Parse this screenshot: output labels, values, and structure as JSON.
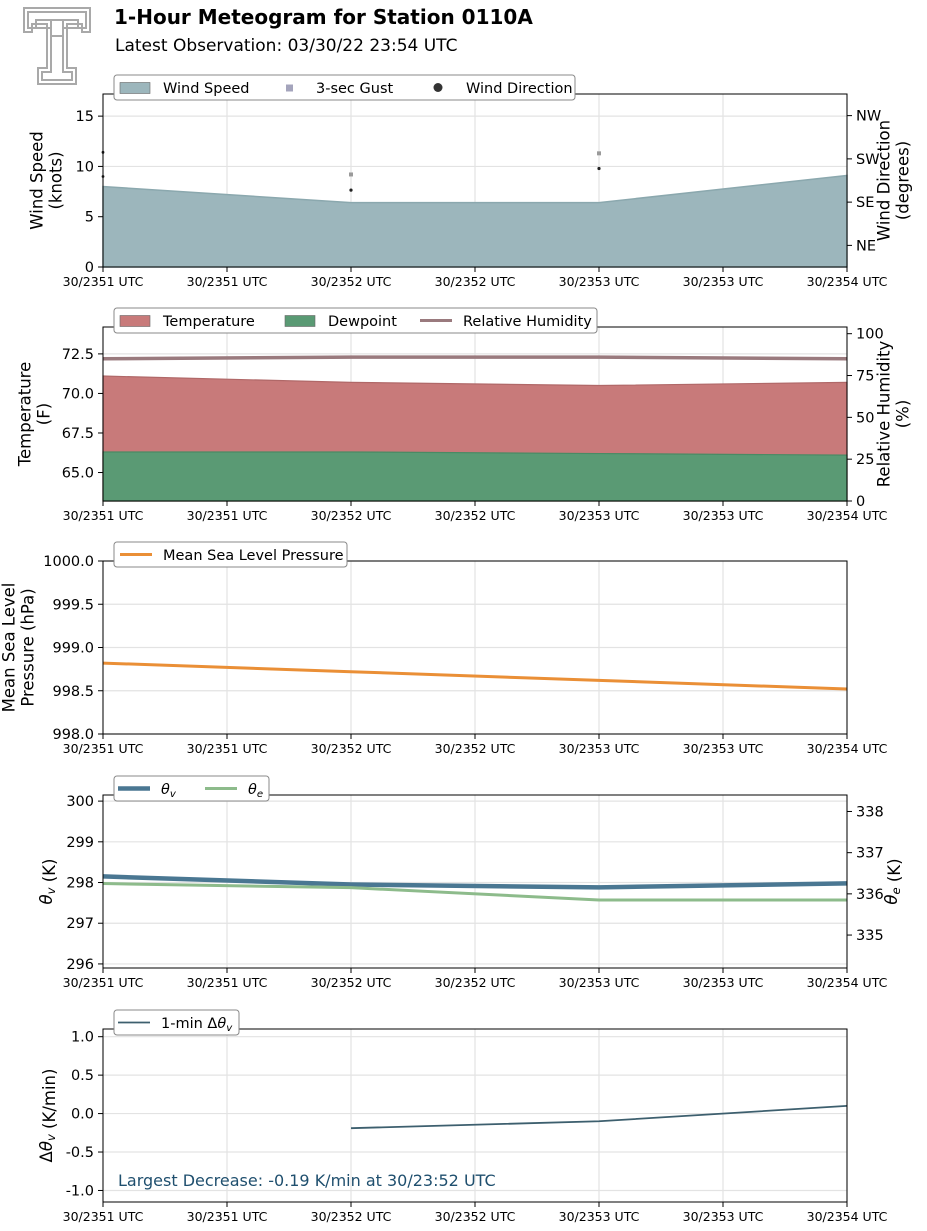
{
  "header": {
    "title": "1-Hour Meteogram for Station 0110A",
    "subtitle": "Latest Observation: 03/30/22 23:54 UTC"
  },
  "colors": {
    "wind_speed": "#9cb6bc",
    "gust": "#a4a4bc",
    "direction": "#222222",
    "temperature": "#c87a7a",
    "dewpoint": "#5a9a74",
    "rh": "#9a7a7e",
    "pressure": "#ea8f36",
    "theta_v": "#4a7792",
    "theta_e": "#8dbb8b",
    "dtheta": "#3d5f6e",
    "annotation": "#1f4f6e",
    "logo": "#a9a9a9"
  },
  "x_tick_labels": [
    "30/2351 UTC",
    "30/2351 UTC",
    "30/2352 UTC",
    "30/2352 UTC",
    "30/2353 UTC",
    "30/2353 UTC",
    "30/2354 UTC"
  ],
  "chart_data": [
    {
      "id": "wind",
      "type": "area",
      "ylabel": "Wind Speed\n(knots)",
      "y2label": "Wind Direction\n(degrees)",
      "ylim": [
        0,
        17.2
      ],
      "yticks": [
        0,
        5,
        10,
        15
      ],
      "y2lim": [
        0,
        360
      ],
      "y2ticks": [
        45,
        135,
        225,
        315
      ],
      "y2ticklabels": [
        "NE",
        "SE",
        "SW",
        "NW"
      ],
      "x": [
        0,
        1,
        2,
        3
      ],
      "legend": [
        "Wind Speed",
        "3-sec Gust",
        "Wind Direction"
      ],
      "series": [
        {
          "name": "Wind Speed",
          "values": [
            8.0,
            6.4,
            6.4,
            9.1
          ]
        },
        {
          "name": "3-sec Gust",
          "values": [
            null,
            9.2,
            11.3,
            null
          ]
        },
        {
          "name": "Wind Direction",
          "values": [
            null,
            160,
            205,
            null
          ]
        }
      ]
    },
    {
      "id": "temp",
      "type": "area",
      "ylabel": "Temperature\n(F)",
      "y2label": "Relative Humidity\n(%)",
      "ylim": [
        63.2,
        74.2
      ],
      "yticks": [
        65.0,
        67.5,
        70.0,
        72.5
      ],
      "y2lim": [
        0,
        104
      ],
      "y2ticks": [
        0,
        25,
        50,
        75,
        100
      ],
      "x": [
        0,
        1,
        2,
        3
      ],
      "legend": [
        "Temperature",
        "Dewpoint",
        "Relative Humidity"
      ],
      "series": [
        {
          "name": "Temperature",
          "values": [
            71.1,
            70.7,
            70.5,
            70.7
          ]
        },
        {
          "name": "Dewpoint",
          "values": [
            66.3,
            66.3,
            66.2,
            66.1
          ]
        },
        {
          "name": "Relative Humidity",
          "values": [
            85,
            86,
            86,
            85
          ]
        }
      ]
    },
    {
      "id": "pressure",
      "type": "line",
      "ylabel": "Mean Sea Level\nPressure (hPa)",
      "ylim": [
        998.0,
        1000.0
      ],
      "yticks": [
        998.0,
        998.5,
        999.0,
        999.5,
        1000.0
      ],
      "x": [
        0,
        1,
        2,
        3
      ],
      "legend": [
        "Mean Sea Level Pressure"
      ],
      "series": [
        {
          "name": "Mean Sea Level Pressure",
          "values": [
            998.82,
            998.72,
            998.62,
            998.52
          ]
        }
      ]
    },
    {
      "id": "theta",
      "type": "line",
      "ylabel": "θv (K)",
      "y2label": "θe (K)",
      "ylim": [
        295.9,
        300.15
      ],
      "yticks": [
        296,
        297,
        298,
        299,
        300
      ],
      "y2lim": [
        334.2,
        338.4
      ],
      "y2ticks": [
        335,
        336,
        337,
        338
      ],
      "x": [
        0,
        1,
        2,
        3
      ],
      "legend": [
        "θv",
        "θe"
      ],
      "series": [
        {
          "name": "θv",
          "values": [
            298.15,
            297.95,
            297.88,
            297.98
          ]
        },
        {
          "name": "θe",
          "values": [
            336.25,
            336.15,
            335.85,
            335.85
          ]
        }
      ]
    },
    {
      "id": "dtheta",
      "type": "line",
      "ylabel": "Δθv (K/min)",
      "ylim": [
        -1.15,
        1.1
      ],
      "yticks": [
        -1.0,
        -0.5,
        0.0,
        0.5,
        1.0
      ],
      "x": [
        0,
        1,
        2,
        3
      ],
      "legend": [
        "1-min Δθv"
      ],
      "series": [
        {
          "name": "1-min Δθv",
          "values": [
            null,
            -0.19,
            -0.1,
            0.1
          ]
        }
      ],
      "annotation": "Largest Decrease: -0.19 K/min at 30/23:52 UTC"
    }
  ]
}
